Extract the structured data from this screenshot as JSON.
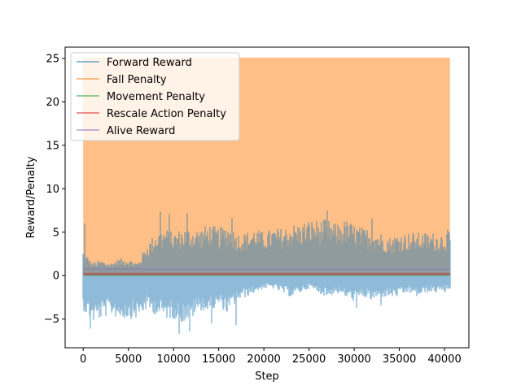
{
  "chart_data": {
    "type": "line",
    "title": "",
    "xlabel": "Step",
    "ylabel": "Reward/Penalty",
    "xlim": [
      -2000,
      42700
    ],
    "ylim": [
      -8.3,
      26.3
    ],
    "xticks": [
      0,
      5000,
      10000,
      15000,
      20000,
      25000,
      30000,
      35000,
      40000
    ],
    "yticks": [
      -5,
      0,
      5,
      10,
      15,
      20,
      25
    ],
    "grid": false,
    "legend_position": "top-left",
    "series": [
      {
        "name": "Forward Reward",
        "color": "#1f77b4",
        "alpha": 0.5,
        "style": "dense-noisy",
        "envelope_x": [
          0,
          1000,
          2000,
          3000,
          4000,
          5000,
          6000,
          7000,
          8000,
          9000,
          10000,
          11000,
          12000,
          13000,
          14000,
          15000,
          16000,
          17000,
          18000,
          19000,
          20000,
          21000,
          22000,
          23000,
          24000,
          25000,
          26000,
          27000,
          28000,
          29000,
          30000,
          31000,
          32000,
          33000,
          34000,
          35000,
          36000,
          37000,
          38000,
          39000,
          40000,
          40600
        ],
        "upper": [
          3.0,
          1.5,
          1.8,
          1.5,
          2.0,
          2.0,
          1.5,
          3.5,
          5.0,
          5.5,
          5.0,
          5.5,
          5.5,
          5.5,
          6.0,
          5.5,
          6.0,
          5.0,
          5.0,
          5.5,
          5.0,
          5.5,
          5.5,
          6.0,
          6.0,
          6.5,
          6.5,
          6.5,
          6.0,
          6.5,
          6.0,
          5.5,
          5.5,
          5.0,
          4.5,
          5.0,
          5.0,
          5.0,
          5.0,
          5.0,
          5.0,
          5.0
        ],
        "lower": [
          -4.0,
          -5.5,
          -5.0,
          -4.5,
          -5.0,
          -5.0,
          -5.0,
          -4.0,
          -4.5,
          -5.0,
          -5.0,
          -5.5,
          -5.0,
          -4.0,
          -4.5,
          -3.5,
          -4.5,
          -3.0,
          -2.5,
          -2.0,
          -1.5,
          -1.5,
          -2.0,
          -2.5,
          -2.0,
          -1.5,
          -2.0,
          -2.5,
          -2.0,
          -2.5,
          -3.0,
          -2.5,
          -3.0,
          -2.5,
          -2.5,
          -2.5,
          -2.0,
          -2.5,
          -2.0,
          -2.0,
          -2.0,
          -1.5
        ],
        "spikes_high": [
          [
            200,
            6.0
          ],
          [
            8500,
            7.4
          ],
          [
            9500,
            7.1
          ],
          [
            11500,
            7.2
          ],
          [
            16500,
            6.6
          ],
          [
            27000,
            7.5
          ],
          [
            32000,
            6.6
          ],
          [
            40400,
            5.3
          ]
        ],
        "spikes_low": [
          [
            800,
            -6.1
          ],
          [
            10600,
            -6.7
          ],
          [
            11800,
            -6.4
          ],
          [
            14200,
            -5.5
          ],
          [
            16900,
            -5.7
          ],
          [
            30300,
            -3.7
          ],
          [
            33000,
            -3.4
          ]
        ]
      },
      {
        "name": "Fall Penalty",
        "color": "#ff7f0e",
        "alpha": 0.5,
        "style": "band",
        "band_min": 0.0,
        "band_max": 25.1
      },
      {
        "name": "Movement Penalty",
        "color": "#2ca02c",
        "alpha": 0.5,
        "style": "flat",
        "value": 0.05
      },
      {
        "name": "Rescale Action Penalty",
        "color": "#d62728",
        "alpha": 0.5,
        "style": "flat-noisy",
        "value": 0.2,
        "amplitude": 0.12
      },
      {
        "name": "Alive Reward",
        "color": "#9467bd",
        "alpha": 0.5,
        "style": "flat",
        "value": 0.75
      }
    ],
    "x_end": 40600
  }
}
